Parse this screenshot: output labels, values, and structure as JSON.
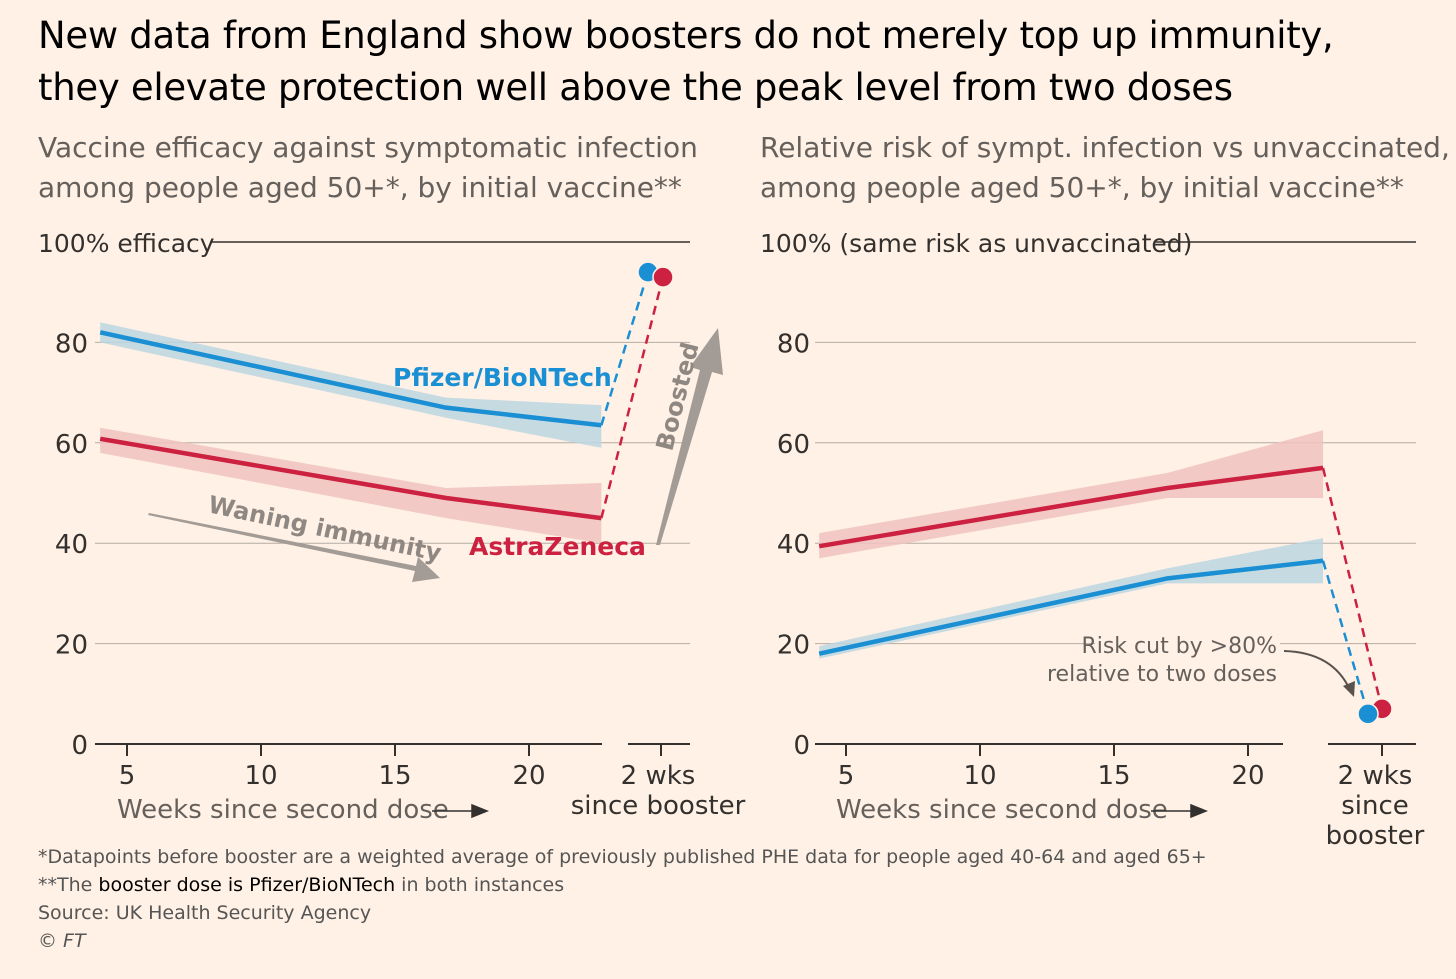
{
  "title": [
    "New data from England show boosters do not merely top up immunity,",
    "they elevate protection well above the peak level from two doses"
  ],
  "colors": {
    "pfizer": "#1a8fd3",
    "astrazeneca": "#cc2140",
    "pfizer_band": "#bcd6e2",
    "astrazeneca_band": "#f0c2c0",
    "grid": "#b5aca5",
    "annot": "#a39b95"
  },
  "chart_data": [
    {
      "type": "line",
      "subtitle": [
        "Vaccine efficacy against symptomatic infection",
        "among people aged 50+*, by initial vaccine**"
      ],
      "top_label": "100% efficacy",
      "ylim": [
        0,
        100
      ],
      "yticks": [
        0,
        20,
        40,
        60,
        80
      ],
      "xticks": [
        5,
        10,
        15,
        20
      ],
      "booster_label": [
        "2 wks",
        "since booster"
      ],
      "xlabel": "Weeks since second dose",
      "series": [
        {
          "name": "Pfizer/BioNTech",
          "key": "pfizer",
          "x": [
            4,
            16.9,
            22.7
          ],
          "y": [
            82,
            67,
            63.5
          ],
          "lo": [
            80,
            65,
            59
          ],
          "hi": [
            84,
            69,
            67.5
          ],
          "booster": 94
        },
        {
          "name": "AstraZeneca",
          "key": "astrazeneca",
          "x": [
            4,
            16.9,
            22.7
          ],
          "y": [
            60.8,
            49,
            45
          ],
          "lo": [
            58,
            45,
            40
          ],
          "hi": [
            63,
            51,
            52
          ],
          "booster": 93
        }
      ],
      "annotations": [
        "Waning immunity",
        "Boosted"
      ]
    },
    {
      "type": "line",
      "subtitle": [
        "Relative risk of sympt. infection vs unvaccinated,",
        "among people aged 50+*, by initial vaccine**"
      ],
      "top_label": "100% (same risk as unvaccinated)",
      "ylim": [
        0,
        100
      ],
      "yticks": [
        0,
        20,
        40,
        60,
        80
      ],
      "xticks": [
        5,
        10,
        15,
        20
      ],
      "booster_label": [
        "2 wks",
        "since",
        "booster"
      ],
      "xlabel": "Weeks since second dose",
      "series": [
        {
          "name": "AstraZeneca",
          "key": "astrazeneca",
          "x": [
            4,
            17,
            22.8
          ],
          "y": [
            39.4,
            51,
            55
          ],
          "lo": [
            37,
            49,
            49
          ],
          "hi": [
            42,
            54,
            62.5
          ],
          "booster": 7
        },
        {
          "name": "Pfizer/BioNTech",
          "key": "pfizer",
          "x": [
            4,
            17,
            22.8
          ],
          "y": [
            18,
            33,
            36.5
          ],
          "lo": [
            17,
            32,
            32
          ],
          "hi": [
            19.5,
            35,
            41
          ],
          "booster": 6
        }
      ],
      "annotations": [
        "Risk cut by >80%",
        "relative to two doses"
      ]
    }
  ],
  "footnotes": {
    "f1": "*Datapoints before booster are a weighted average of previously published PHE data for people aged 40-64 and aged 65+",
    "f2a": "**The ",
    "f2b": "booster dose is Pfizer/BioNTech",
    "f2c": " in both instances",
    "source": "Source: UK Health Security Agency",
    "credit": "© FT"
  }
}
